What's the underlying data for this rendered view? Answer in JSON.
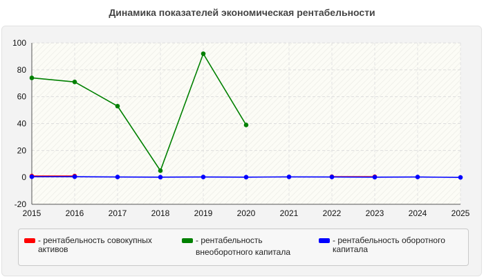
{
  "chart_data": {
    "type": "line",
    "title": "Динамика показателей экономическая рентабельности",
    "x": [
      "2015",
      "2016",
      "2017",
      "2018",
      "2019",
      "2020",
      "2021",
      "2022",
      "2023",
      "2024",
      "2025"
    ],
    "ylim": [
      -20,
      100
    ],
    "yticks": [
      -20,
      0,
      20,
      40,
      60,
      80,
      100
    ],
    "grid": true,
    "legend_position": "bottom",
    "series": [
      {
        "name": "- рентабельность совокупных активов",
        "color": "#ff0000",
        "values": [
          1,
          1,
          null,
          null,
          null,
          null,
          null,
          0.5,
          0.5,
          null,
          null
        ]
      },
      {
        "name": "- рентабельность внеоборотного капитала",
        "color": "#008000",
        "values": [
          74,
          71,
          53,
          5,
          92,
          39,
          null,
          null,
          null,
          null,
          null
        ]
      },
      {
        "name": "- рентабельность оборотного капитала",
        "color": "#0000ff",
        "values": [
          0.5,
          0.5,
          0.3,
          0.2,
          0.3,
          0.2,
          0.4,
          0.3,
          0.2,
          0.3,
          0
        ]
      }
    ]
  },
  "legend": {
    "items": [
      {
        "lines": [
          "- рентабельность совокупных",
          "активов"
        ]
      },
      {
        "lines": [
          "- рентабельность",
          "внеоборотного капитала"
        ]
      },
      {
        "lines": [
          "- рентабельность оборотного",
          "капитала"
        ]
      }
    ]
  }
}
